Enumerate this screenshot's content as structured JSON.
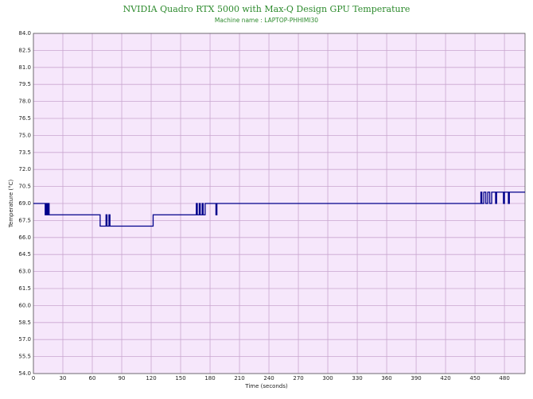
{
  "chart_data": {
    "type": "line",
    "title": "NVIDIA Quadro RTX 5000 with Max-Q Design GPU Temperature",
    "subtitle": "Machine name : LAPTOP-PHHIMI30",
    "x_label": "Time (seconds)",
    "y_label": "Temperature (°C)",
    "x": [
      0,
      12,
      12,
      13,
      13,
      14,
      14,
      15,
      15,
      16,
      16,
      17,
      68,
      68,
      74,
      74,
      75,
      75,
      77,
      77,
      78,
      78,
      122,
      122,
      166,
      166,
      167,
      167,
      169,
      169,
      170,
      170,
      172,
      172,
      173,
      173,
      175,
      175,
      186,
      186,
      187,
      187,
      456,
      456,
      457,
      457,
      459,
      459,
      461,
      461,
      463,
      463,
      465,
      465,
      467,
      467,
      471,
      471,
      472,
      472,
      479,
      479,
      480,
      480,
      484,
      484,
      485,
      485,
      501
    ],
    "series": [
      {
        "name": "Temperature",
        "color": "#00008b",
        "values": [
          69,
          69,
          68,
          68,
          69,
          69,
          68,
          68,
          69,
          69,
          68,
          68,
          68,
          67,
          67,
          68,
          68,
          67,
          67,
          68,
          68,
          67,
          67,
          68,
          68,
          69,
          69,
          68,
          68,
          69,
          69,
          68,
          68,
          69,
          69,
          68,
          68,
          69,
          69,
          68,
          68,
          69,
          69,
          70,
          70,
          69,
          69,
          70,
          70,
          69,
          69,
          70,
          70,
          69,
          69,
          70,
          70,
          69,
          69,
          70,
          70,
          69,
          69,
          70,
          70,
          69,
          69,
          70,
          70
        ]
      }
    ],
    "xlim": [
      0,
      501
    ],
    "ylim": [
      54,
      84
    ],
    "xticks": [
      0,
      30,
      60,
      90,
      120,
      150,
      180,
      210,
      240,
      270,
      300,
      330,
      360,
      390,
      420,
      450,
      480
    ],
    "yticks": [
      {
        "value": 54,
        "label": "54.0"
      },
      {
        "value": 55.5,
        "label": "55.5"
      },
      {
        "value": 57,
        "label": "57.0"
      },
      {
        "value": 58.5,
        "label": "58.5"
      },
      {
        "value": 60,
        "label": "60.0"
      },
      {
        "value": 61.5,
        "label": "61.5"
      },
      {
        "value": 63,
        "label": "63.0"
      },
      {
        "value": 64.5,
        "label": "64.5"
      },
      {
        "value": 66,
        "label": "66.0"
      },
      {
        "value": 67.5,
        "label": "67.5"
      },
      {
        "value": 69,
        "label": "69.0"
      },
      {
        "value": 70.5,
        "label": "70.5"
      },
      {
        "value": 72,
        "label": "72.0"
      },
      {
        "value": 73.5,
        "label": "73.5"
      },
      {
        "value": 75,
        "label": "75.0"
      },
      {
        "value": 76.5,
        "label": "76.5"
      },
      {
        "value": 78,
        "label": "78.0"
      },
      {
        "value": 79.5,
        "label": "79.5"
      },
      {
        "value": 81,
        "label": "81.0"
      },
      {
        "value": 82.5,
        "label": "82.5"
      },
      {
        "value": 84,
        "label": "84.0"
      }
    ],
    "grid": true,
    "background": "#f6e7fb"
  }
}
